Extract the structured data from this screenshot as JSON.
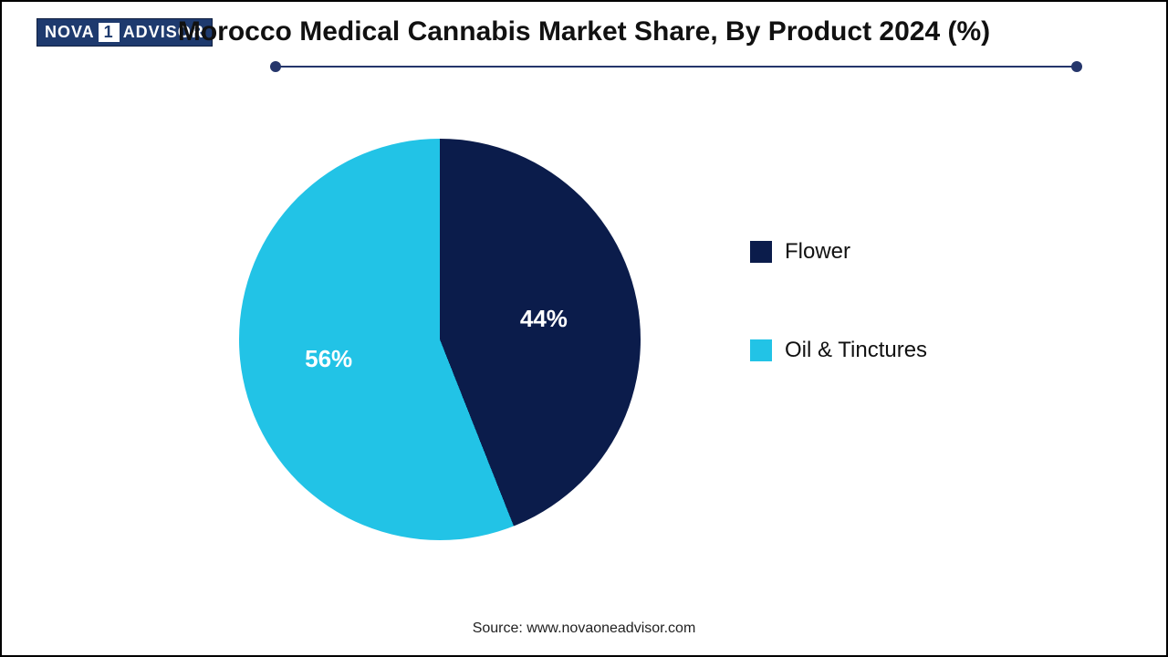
{
  "logo": {
    "left_text": "NOVA",
    "one_text": "1",
    "right_text": "ADVISOR",
    "bg_color": "#1e3a6e",
    "text_color": "#ffffff"
  },
  "title": {
    "text": "Morocco Medical Cannabis Market Share, By Product 2024 (%)",
    "fontsize": 30,
    "color": "#111111"
  },
  "divider": {
    "color": "#25366b",
    "dot_color": "#25366b"
  },
  "chart": {
    "type": "pie",
    "background_color": "#ffffff",
    "slices": [
      {
        "label": "Flower",
        "value": 44,
        "color": "#0b1c4b",
        "text_color": "#ffffff",
        "label_text": "44%"
      },
      {
        "label": "Oil & Tinctures",
        "value": 56,
        "color": "#22c3e6",
        "text_color": "#ffffff",
        "label_text": "56%"
      }
    ],
    "label_fontsize": 26,
    "label_fontweight": "bold"
  },
  "legend": {
    "items": [
      {
        "text": "Flower",
        "color": "#0b1c4b"
      },
      {
        "text": "Oil & Tinctures",
        "color": "#22c3e6"
      }
    ],
    "fontsize": 24,
    "swatch_size": 24
  },
  "source": {
    "text": "Source: www.novaoneadvisor.com",
    "fontsize": 16,
    "color": "#222222"
  }
}
